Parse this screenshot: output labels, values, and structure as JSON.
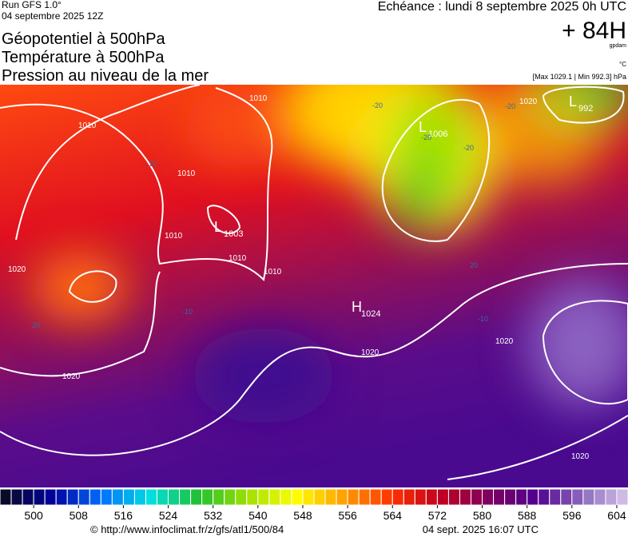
{
  "header": {
    "run": "Run GFS 1.0°",
    "run_date": "04 septembre 2025 12Z",
    "fields": [
      "Géopotentiel à 500hPa",
      "Température à 500hPa",
      "Pression au niveau de la mer"
    ],
    "valid": "Echéance : lundi 8 septembre 2025 0h UTC",
    "lead": "+ 84H",
    "unit_geo": "gpdam",
    "unit_temp": "°C",
    "pressure_range": "[Max 1029.1 | Min 992.3] hPa"
  },
  "map": {
    "centers": [
      {
        "letter": "L",
        "value": "1003"
      },
      {
        "letter": "L",
        "value": "1006"
      },
      {
        "letter": "L",
        "value": "992"
      },
      {
        "letter": "H",
        "value": "1024"
      }
    ],
    "isobar_labels": [
      "1010",
      "1010",
      "1010",
      "1010",
      "1010",
      "1010",
      "1020",
      "1020",
      "1020",
      "1020",
      "1020",
      "1020"
    ],
    "temp_labels": [
      "-20",
      "-20",
      "-20",
      "-20",
      "-10",
      "-10",
      "-10",
      "20",
      "20"
    ]
  },
  "colorbar": {
    "lim": [
      494,
      606
    ],
    "step": 2,
    "ticks": [
      500,
      508,
      516,
      524,
      532,
      540,
      548,
      556,
      564,
      572,
      580,
      588,
      596,
      604
    ],
    "stops": [
      "#0a0a28",
      "#0000a0",
      "#0070ff",
      "#00e0e0",
      "#20c030",
      "#a0e000",
      "#ffff00",
      "#ffa000",
      "#ff3000",
      "#c00020",
      "#800060",
      "#500090",
      "#9070c0",
      "#e0d0f0"
    ]
  },
  "footer": {
    "source": "© http://www.infoclimat.fr/z/gfs/atl1/500/84",
    "generated": "04 sept. 2025 16:07 UTC"
  }
}
